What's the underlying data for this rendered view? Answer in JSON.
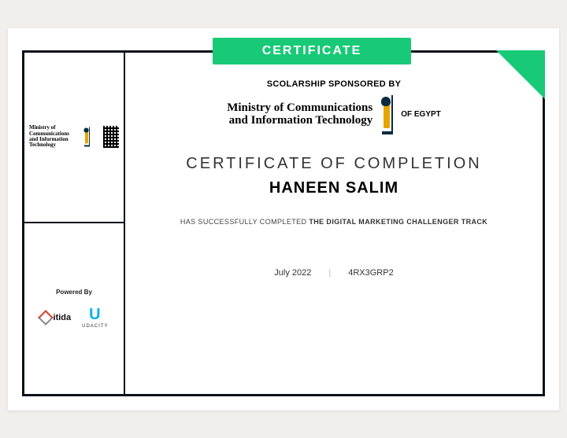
{
  "banner": {
    "label": "CERTIFICATE"
  },
  "sidebar": {
    "ministry_mini_line1": "Ministry of Communications",
    "ministry_mini_line2": "and Information Technology",
    "powered_by": "Powered By",
    "itida_label": "itida",
    "udacity_label": "UDACITY"
  },
  "sponsor": {
    "label": "SCOLARSHIP SPONSORED BY",
    "ministry_line1": "Ministry of Communications",
    "ministry_line2": "and Information Technology",
    "of_egypt": "OF EGYPT"
  },
  "body": {
    "title": "CERTIFICATE OF COMPLETION",
    "recipient": "HANEEN SALIM",
    "completed_prefix": "HAS SUCCESSFULLY COMPLETED ",
    "track": "THE DIGITAL MARKETING CHALLENGER TRACK"
  },
  "footer": {
    "date": "July 2022",
    "code": "4RX3GRP2"
  },
  "colors": {
    "accent": "#18c977",
    "frame": "#09111a",
    "page_bg": "#ffffff",
    "body_bg": "#f0efeb"
  }
}
